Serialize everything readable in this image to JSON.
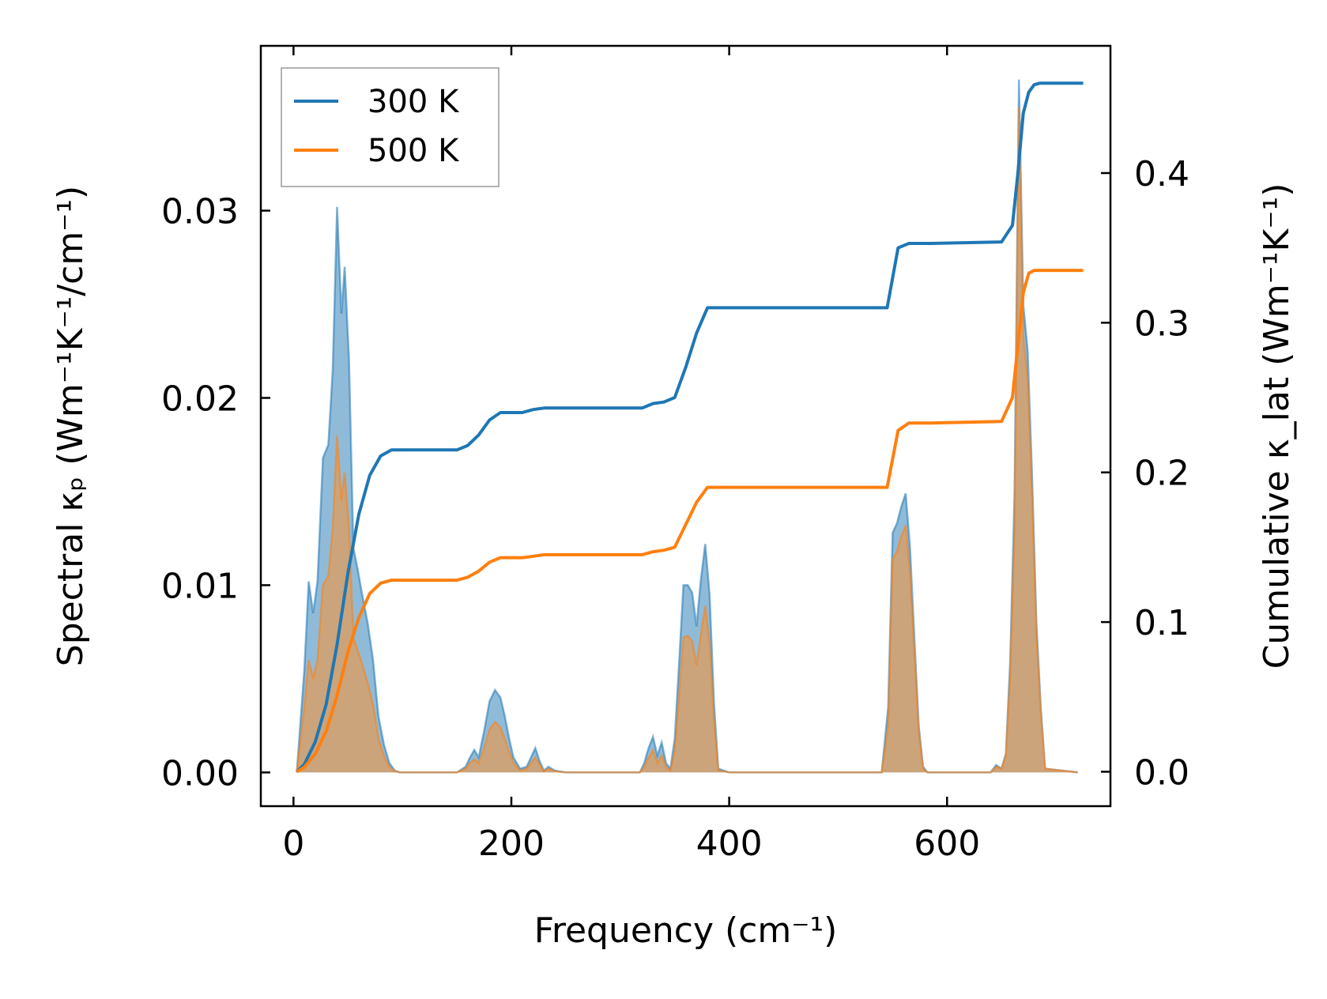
{
  "chart_data": {
    "type": "line",
    "xlabel": "Frequency (cm⁻¹)",
    "ylabel_left": "Spectral κₚ (Wm⁻¹K⁻¹/cm⁻¹)",
    "ylabel_right": "Cumulative κ_lat (Wm⁻¹K⁻¹)",
    "xlim": [
      -30,
      750
    ],
    "ylim_left": [
      -0.0018,
      0.0388
    ],
    "ylim_right": [
      -0.023,
      0.485
    ],
    "xticks": [
      0,
      200,
      400,
      600
    ],
    "xtick_labels": [
      "0",
      "200",
      "400",
      "600"
    ],
    "yticks_left": [
      0.0,
      0.01,
      0.02,
      0.03
    ],
    "ytick_labels_left": [
      "0.00",
      "0.01",
      "0.02",
      "0.03"
    ],
    "yticks_right": [
      0.0,
      0.1,
      0.2,
      0.3,
      0.4
    ],
    "ytick_labels_right": [
      "0.0",
      "0.1",
      "0.2",
      "0.3",
      "0.4"
    ],
    "legend_position": "top-left",
    "colors": {
      "s300": "#1f77b4",
      "s500": "#ff7f0e",
      "fill300": "#1f77b4",
      "fill500": "#d6a06a"
    },
    "spectral_series": [
      {
        "name": "300 K",
        "x": [
          3,
          10,
          14,
          18,
          22,
          27,
          32,
          36,
          40,
          44,
          47,
          51,
          55,
          59,
          63,
          68,
          73,
          78,
          83,
          88,
          93,
          98,
          105,
          150,
          158,
          162,
          166,
          170,
          175,
          180,
          185,
          190,
          194,
          198,
          202,
          208,
          214,
          218,
          222,
          226,
          230,
          234,
          240,
          250,
          300,
          318,
          322,
          326,
          330,
          334,
          338,
          342,
          346,
          350,
          354,
          358,
          362,
          366,
          370,
          374,
          378,
          382,
          386,
          390,
          400,
          540,
          546,
          550,
          554,
          558,
          562,
          566,
          570,
          574,
          578,
          582,
          640,
          645,
          650,
          654,
          658,
          662,
          666,
          670,
          674,
          678,
          682,
          686,
          690,
          720
        ],
        "y": [
          0,
          0.0055,
          0.0102,
          0.0085,
          0.0102,
          0.0168,
          0.0175,
          0.0215,
          0.0302,
          0.0245,
          0.027,
          0.022,
          0.012,
          0.0108,
          0.0095,
          0.008,
          0.006,
          0.003,
          0.0015,
          0.0005,
          0.0001,
          0,
          0,
          0,
          0.0003,
          0.0008,
          0.0012,
          0.0008,
          0.0022,
          0.0038,
          0.0044,
          0.004,
          0.003,
          0.0018,
          0.0008,
          0.0002,
          0.0003,
          0.0008,
          0.0013,
          0.0006,
          0.0001,
          0.0003,
          0.0001,
          0,
          0,
          0,
          0.0005,
          0.0013,
          0.0019,
          0.0009,
          0.0016,
          0.0005,
          0.0002,
          0.0018,
          0.0058,
          0.01,
          0.01,
          0.0096,
          0.0078,
          0.0103,
          0.0122,
          0.0095,
          0.0038,
          0.0002,
          0,
          0,
          0.0035,
          0.0128,
          0.0133,
          0.0142,
          0.0149,
          0.012,
          0.0072,
          0.0025,
          0.0003,
          0,
          0,
          0.0004,
          0.0002,
          0.001,
          0.006,
          0.015,
          0.037,
          0.025,
          0.0225,
          0.0159,
          0.008,
          0.0035,
          0.0002,
          0
        ]
      },
      {
        "name": "500 K",
        "x": [
          3,
          10,
          14,
          18,
          22,
          27,
          32,
          36,
          40,
          44,
          47,
          51,
          55,
          59,
          63,
          68,
          73,
          78,
          83,
          88,
          93,
          98,
          105,
          150,
          158,
          162,
          166,
          170,
          175,
          180,
          185,
          190,
          194,
          198,
          202,
          208,
          214,
          218,
          222,
          226,
          230,
          234,
          240,
          250,
          300,
          318,
          322,
          326,
          330,
          334,
          338,
          342,
          346,
          350,
          354,
          358,
          362,
          366,
          370,
          374,
          378,
          382,
          386,
          390,
          400,
          540,
          546,
          550,
          554,
          558,
          562,
          566,
          570,
          574,
          578,
          582,
          640,
          645,
          650,
          654,
          658,
          662,
          666,
          670,
          674,
          678,
          682,
          686,
          690,
          720
        ],
        "y": [
          0,
          0.0035,
          0.006,
          0.005,
          0.006,
          0.01,
          0.0105,
          0.013,
          0.018,
          0.0145,
          0.016,
          0.013,
          0.0072,
          0.0065,
          0.0058,
          0.0048,
          0.0036,
          0.0018,
          0.0009,
          0.0003,
          6e-05,
          0,
          0,
          0,
          0.0002,
          0.0005,
          0.0007,
          0.0005,
          0.0013,
          0.0023,
          0.0027,
          0.0024,
          0.0018,
          0.0011,
          0.0005,
          0.0001,
          0.0002,
          0.0005,
          0.0008,
          0.0004,
          6e-05,
          0.0002,
          6e-05,
          0,
          0,
          0,
          0.0003,
          0.0008,
          0.0012,
          0.0005,
          0.0009,
          0.0003,
          0.0001,
          0.0011,
          0.0041,
          0.0072,
          0.0073,
          0.007,
          0.0057,
          0.0074,
          0.0089,
          0.0069,
          0.0028,
          0.0001,
          0,
          0,
          0.0025,
          0.0114,
          0.0118,
          0.0126,
          0.0132,
          0.0106,
          0.0064,
          0.0022,
          0.0002,
          0,
          0,
          0.0003,
          0.0002,
          0.0009,
          0.0052,
          0.013,
          0.0355,
          0.0233,
          0.0209,
          0.0148,
          0.0074,
          0.0032,
          0.0002,
          0
        ]
      }
    ],
    "cumulative_series": [
      {
        "name": "300 K",
        "x": [
          3,
          10,
          20,
          30,
          40,
          50,
          60,
          70,
          80,
          90,
          100,
          150,
          160,
          170,
          180,
          190,
          200,
          210,
          220,
          230,
          250,
          320,
          330,
          340,
          350,
          360,
          370,
          380,
          390,
          545,
          555,
          565,
          575,
          585,
          650,
          660,
          665,
          670,
          675,
          680,
          685,
          725
        ],
        "y": [
          0,
          0.005,
          0.02,
          0.045,
          0.085,
          0.133,
          0.172,
          0.198,
          0.211,
          0.215,
          0.215,
          0.215,
          0.218,
          0.225,
          0.235,
          0.24,
          0.24,
          0.24,
          0.242,
          0.243,
          0.243,
          0.243,
          0.246,
          0.247,
          0.25,
          0.27,
          0.293,
          0.31,
          0.31,
          0.31,
          0.35,
          0.353,
          0.353,
          0.353,
          0.354,
          0.365,
          0.4,
          0.44,
          0.454,
          0.459,
          0.46,
          0.46
        ]
      },
      {
        "name": "500 K",
        "x": [
          3,
          10,
          20,
          30,
          40,
          50,
          60,
          70,
          80,
          90,
          100,
          150,
          160,
          170,
          180,
          190,
          200,
          210,
          220,
          230,
          250,
          320,
          330,
          340,
          350,
          360,
          370,
          380,
          390,
          545,
          555,
          565,
          575,
          585,
          650,
          660,
          665,
          670,
          675,
          680,
          685,
          725
        ],
        "y": [
          0,
          0.003,
          0.012,
          0.027,
          0.051,
          0.08,
          0.103,
          0.119,
          0.126,
          0.128,
          0.128,
          0.128,
          0.13,
          0.134,
          0.14,
          0.143,
          0.143,
          0.143,
          0.144,
          0.145,
          0.145,
          0.145,
          0.147,
          0.148,
          0.15,
          0.165,
          0.18,
          0.19,
          0.19,
          0.19,
          0.228,
          0.233,
          0.233,
          0.233,
          0.234,
          0.25,
          0.285,
          0.32,
          0.333,
          0.335,
          0.335,
          0.335
        ]
      }
    ]
  }
}
